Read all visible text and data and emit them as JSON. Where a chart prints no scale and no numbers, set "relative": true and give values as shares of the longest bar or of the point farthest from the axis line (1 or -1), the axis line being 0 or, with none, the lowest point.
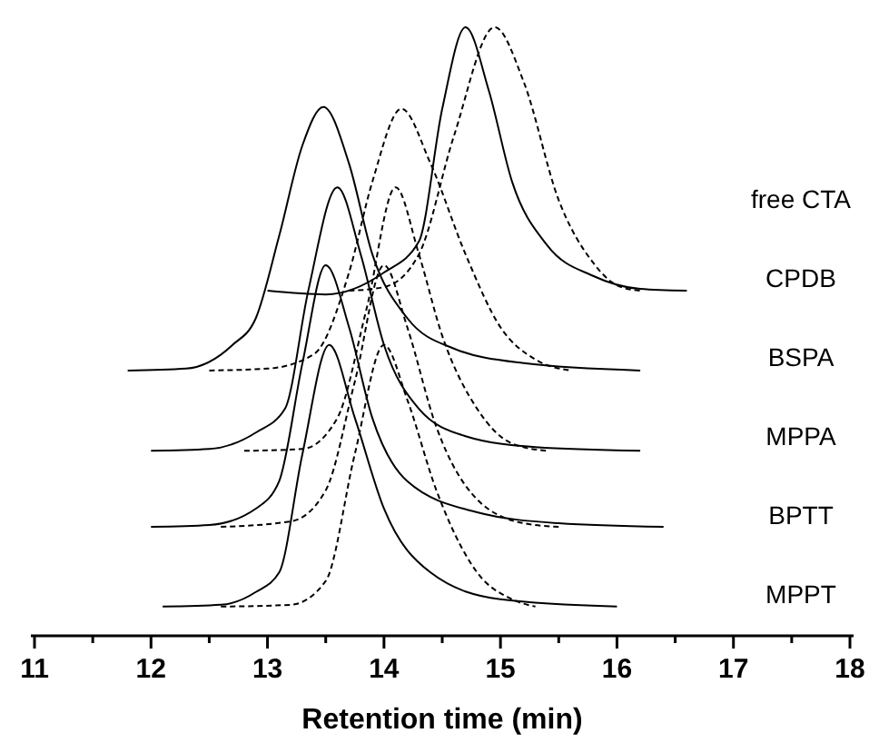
{
  "chart_data": {
    "type": "line",
    "relative": true,
    "xlabel": "Retention time (min)",
    "xlim": [
      11,
      18
    ],
    "xticks": [
      11,
      {
        "value": 11.5,
        "label": null
      },
      12,
      {
        "value": 12.5,
        "label": null
      },
      13,
      {
        "value": 13.5,
        "label": null
      },
      14,
      {
        "value": 14.5,
        "label": null
      },
      15,
      {
        "value": 15.5,
        "label": null
      },
      16,
      {
        "value": 16.5,
        "label": null
      },
      17,
      {
        "value": 17.5,
        "label": null
      },
      18
    ],
    "annotations": [
      "free CTA",
      "CPDB",
      "BSPA",
      "MPPA",
      "BPTT",
      "MPPT"
    ],
    "series": [
      {
        "color": "#000000",
        "line_style": "solid",
        "x": [
          13.0,
          13.5,
          14.0,
          14.3,
          14.5,
          14.7,
          14.9,
          15.1,
          15.4,
          15.8,
          16.2,
          16.6
        ],
        "values": [
          0.567,
          0.561,
          0.597,
          0.648,
          0.866,
          1,
          0.896,
          0.746,
          0.642,
          0.591,
          0.57,
          0.567
        ]
      },
      {
        "color": "#000000",
        "line_style": "dashed",
        "x": [
          13.7,
          14.0,
          14.3,
          14.6,
          14.95,
          15.2,
          15.5,
          15.8,
          16.0,
          16.2
        ],
        "values": [
          0.567,
          0.573,
          0.627,
          0.821,
          1,
          0.91,
          0.716,
          0.612,
          0.576,
          0.567
        ]
      },
      {
        "color": "#000000",
        "line_style": "solid",
        "x": [
          11.8,
          12.3,
          12.7,
          12.9,
          13.1,
          13.3,
          13.48,
          13.7,
          13.9,
          14.2,
          14.6,
          15.2,
          16.2
        ],
        "values": [
          0.436,
          0.439,
          0.478,
          0.522,
          0.657,
          0.806,
          0.869,
          0.776,
          0.627,
          0.522,
          0.472,
          0.448,
          0.436
        ]
      },
      {
        "color": "#000000",
        "line_style": "dashed",
        "x": [
          12.5,
          13.0,
          13.4,
          13.7,
          13.9,
          14.15,
          14.4,
          14.7,
          15.0,
          15.3,
          15.6
        ],
        "values": [
          0.436,
          0.439,
          0.463,
          0.597,
          0.746,
          0.866,
          0.776,
          0.627,
          0.507,
          0.454,
          0.436
        ]
      },
      {
        "color": "#000000",
        "line_style": "solid",
        "x": [
          12.0,
          12.5,
          12.9,
          13.15,
          13.35,
          13.6,
          13.8,
          14.0,
          14.3,
          14.7,
          15.3,
          16.2
        ],
        "values": [
          0.304,
          0.307,
          0.334,
          0.373,
          0.567,
          0.737,
          0.627,
          0.478,
          0.373,
          0.328,
          0.31,
          0.304
        ]
      },
      {
        "color": "#000000",
        "line_style": "dashed",
        "x": [
          12.8,
          13.3,
          13.6,
          13.85,
          14.1,
          14.3,
          14.5,
          14.8,
          15.1,
          15.4
        ],
        "values": [
          0.304,
          0.307,
          0.358,
          0.537,
          0.737,
          0.627,
          0.493,
          0.373,
          0.316,
          0.304
        ]
      },
      {
        "color": "#000000",
        "line_style": "solid",
        "x": [
          12.0,
          12.5,
          12.9,
          13.1,
          13.3,
          13.5,
          13.7,
          13.9,
          14.2,
          14.8,
          15.5,
          16.4
        ],
        "values": [
          0.179,
          0.182,
          0.209,
          0.254,
          0.448,
          0.609,
          0.507,
          0.358,
          0.254,
          0.203,
          0.185,
          0.179
        ]
      },
      {
        "color": "#000000",
        "line_style": "dashed",
        "x": [
          12.6,
          13.2,
          13.5,
          13.75,
          14.0,
          14.2,
          14.45,
          14.8,
          15.2,
          15.5
        ],
        "values": [
          0.179,
          0.188,
          0.239,
          0.418,
          0.609,
          0.507,
          0.343,
          0.224,
          0.185,
          0.179
        ]
      },
      {
        "color": "#000000",
        "line_style": "solid",
        "x": [
          12.1,
          12.6,
          12.9,
          13.1,
          13.3,
          13.53,
          13.75,
          14.0,
          14.4,
          15.0,
          16.0
        ],
        "values": [
          0.048,
          0.051,
          0.072,
          0.104,
          0.299,
          0.478,
          0.358,
          0.209,
          0.104,
          0.06,
          0.048
        ]
      },
      {
        "color": "#000000",
        "line_style": "dashed",
        "x": [
          12.6,
          13.2,
          13.5,
          13.75,
          14.0,
          14.2,
          14.45,
          14.8,
          15.1,
          15.3
        ],
        "values": [
          0.048,
          0.051,
          0.09,
          0.299,
          0.478,
          0.388,
          0.239,
          0.104,
          0.06,
          0.048
        ]
      }
    ]
  }
}
